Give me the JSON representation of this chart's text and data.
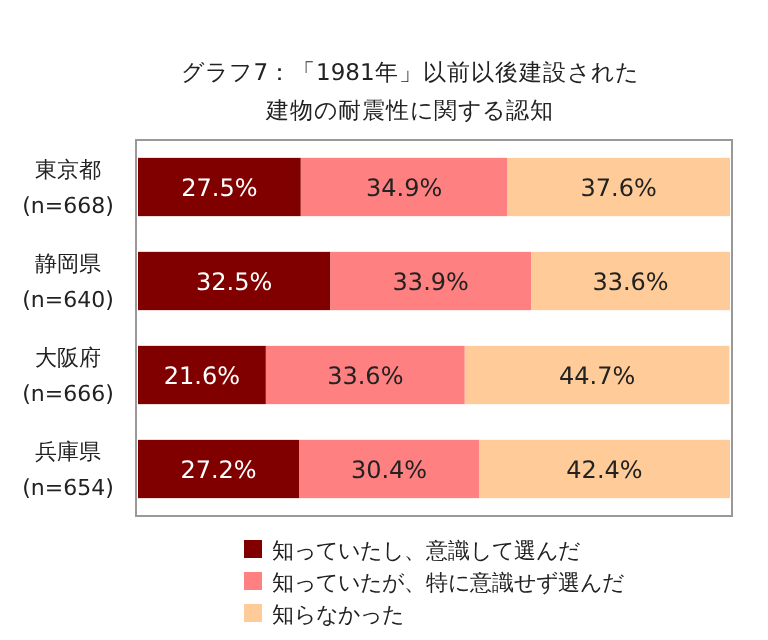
{
  "chart_data": {
    "type": "bar",
    "orientation": "horizontal",
    "stacked": true,
    "title": "グラフ7：「1981年」以前以後建設された",
    "subtitle": "建物の耐震性に関する認知",
    "categories": [
      "東京都\n(n=668)",
      "静岡県\n(n=640)",
      "大阪府\n(n=666)",
      "兵庫県\n(n=654)"
    ],
    "xlim": [
      0,
      100
    ],
    "legend": "bottom",
    "series": [
      {
        "name": "知っていたし、意識して選んだ",
        "color": "#800000",
        "values": [
          27.5,
          32.5,
          21.6,
          27.2
        ],
        "value_labels": [
          "27.5%",
          "32.5%",
          "21.6%",
          "27.2%"
        ]
      },
      {
        "name": "知っていたが、特に意識せず選んだ",
        "color": "#ff8080",
        "values": [
          34.9,
          33.9,
          33.6,
          30.4
        ],
        "value_labels": [
          "34.9%",
          "33.9%",
          "33.6%",
          "30.4%"
        ]
      },
      {
        "name": "知らなかった",
        "color": "#ffcc99",
        "values": [
          37.6,
          33.6,
          44.7,
          42.4
        ],
        "value_labels": [
          "37.6%",
          "33.6%",
          "44.7%",
          "42.4%"
        ]
      }
    ]
  }
}
